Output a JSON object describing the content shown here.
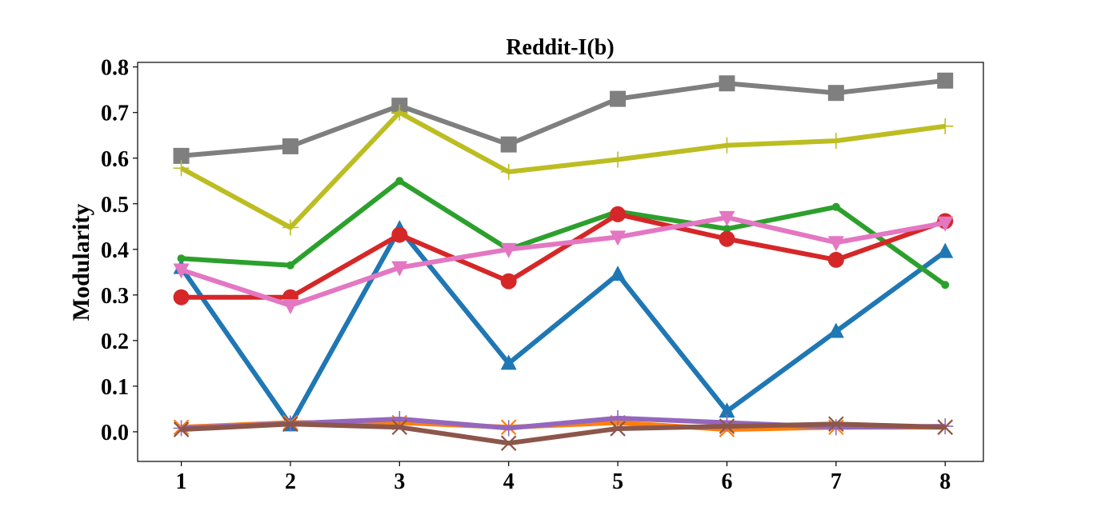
{
  "chart_data": {
    "type": "line",
    "title": "Reddit-I(b)",
    "xlabel": "",
    "ylabel": "Modularity",
    "x": [
      1,
      2,
      3,
      4,
      5,
      6,
      7,
      8
    ],
    "x_ticks": [
      "1",
      "2",
      "3",
      "4",
      "5",
      "6",
      "7",
      "8"
    ],
    "xlim": [
      0.6,
      8.35
    ],
    "ylim": [
      -0.065,
      0.81
    ],
    "y_ticks": [
      "0.0",
      "0.1",
      "0.2",
      "0.3",
      "0.4",
      "0.5",
      "0.6",
      "0.7",
      "0.8"
    ],
    "grid": false,
    "legend": "none",
    "series": [
      {
        "color": "#1f77b4",
        "marker": "triangle-up",
        "values": [
          0.36,
          0.015,
          0.445,
          0.15,
          0.345,
          0.045,
          0.22,
          0.395
        ]
      },
      {
        "color": "#ff7f0e",
        "marker": "x",
        "values": [
          0.01,
          0.02,
          0.02,
          0.01,
          0.02,
          0.005,
          0.01,
          0.01
        ]
      },
      {
        "color": "#2ca02c",
        "marker": "circle-small",
        "values": [
          0.38,
          0.365,
          0.55,
          0.4,
          0.483,
          0.445,
          0.493,
          0.322
        ]
      },
      {
        "color": "#d62728",
        "marker": "circle",
        "values": [
          0.295,
          0.295,
          0.432,
          0.33,
          0.477,
          0.423,
          0.377,
          0.462
        ]
      },
      {
        "color": "#9467bd",
        "marker": "plus",
        "values": [
          0.008,
          0.018,
          0.028,
          0.008,
          0.03,
          0.02,
          0.01,
          0.012
        ]
      },
      {
        "color": "#8c564b",
        "marker": "x",
        "values": [
          0.005,
          0.017,
          0.01,
          -0.025,
          0.007,
          0.012,
          0.017,
          0.01
        ]
      },
      {
        "color": "#e377c2",
        "marker": "triangle-down",
        "values": [
          0.355,
          0.277,
          0.36,
          0.4,
          0.427,
          0.47,
          0.415,
          0.458
        ]
      },
      {
        "color": "#7f7f7f",
        "marker": "square",
        "values": [
          0.605,
          0.626,
          0.715,
          0.63,
          0.73,
          0.764,
          0.743,
          0.77
        ]
      },
      {
        "color": "#bcbd22",
        "marker": "plus",
        "values": [
          0.578,
          0.448,
          0.7,
          0.57,
          0.597,
          0.628,
          0.638,
          0.67
        ]
      }
    ]
  }
}
